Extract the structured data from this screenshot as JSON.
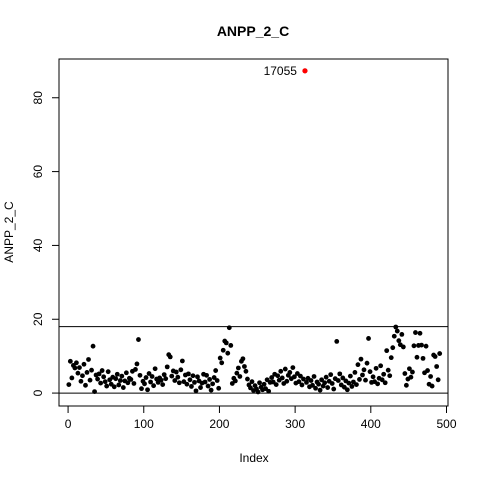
{
  "chart_data": {
    "type": "scatter",
    "title": "ANPP_2_C",
    "xlabel": "Index",
    "ylabel": "ANPP_2_C",
    "xlim": [
      -12,
      502
    ],
    "ylim": [
      -3.5,
      90.5
    ],
    "x_ticks": [
      0,
      100,
      200,
      300,
      400,
      500
    ],
    "y_ticks": [
      0,
      20,
      40,
      60,
      80
    ],
    "hlines": [
      0,
      18
    ],
    "grid": false,
    "legend": "none",
    "point_color": "#000000",
    "highlight_color": "#ff0000",
    "points": [
      [
        1,
        2.3
      ],
      [
        3,
        8.6
      ],
      [
        5,
        4.1
      ],
      [
        7,
        7.5
      ],
      [
        9,
        6.8
      ],
      [
        11,
        8.2
      ],
      [
        13,
        5.4
      ],
      [
        15,
        6.9
      ],
      [
        17,
        3.2
      ],
      [
        19,
        4.7
      ],
      [
        21,
        7.8
      ],
      [
        23,
        2.1
      ],
      [
        25,
        5.6
      ],
      [
        27,
        9.1
      ],
      [
        29,
        3.5
      ],
      [
        31,
        6.2
      ],
      [
        33,
        12.7
      ],
      [
        35,
        0.4
      ],
      [
        37,
        4.9
      ],
      [
        39,
        3.8
      ],
      [
        41,
        5.2
      ],
      [
        43,
        2.7
      ],
      [
        45,
        6.1
      ],
      [
        47,
        4.4
      ],
      [
        49,
        3.1
      ],
      [
        51,
        1.9
      ],
      [
        53,
        5.8
      ],
      [
        55,
        3.6
      ],
      [
        57,
        2.4
      ],
      [
        59,
        4.3
      ],
      [
        61,
        1.7
      ],
      [
        63,
        3.9
      ],
      [
        65,
        5.1
      ],
      [
        67,
        2.2
      ],
      [
        69,
        3.4
      ],
      [
        71,
        4.6
      ],
      [
        73,
        1.5
      ],
      [
        75,
        3.3
      ],
      [
        77,
        5.5
      ],
      [
        79,
        2.8
      ],
      [
        81,
        4.0
      ],
      [
        83,
        3.7
      ],
      [
        85,
        5.9
      ],
      [
        87,
        2.6
      ],
      [
        89,
        6.4
      ],
      [
        91,
        7.9
      ],
      [
        93,
        14.5
      ],
      [
        95,
        4.8
      ],
      [
        97,
        1.2
      ],
      [
        99,
        3.2
      ],
      [
        101,
        2.5
      ],
      [
        103,
        4.2
      ],
      [
        105,
        0.9
      ],
      [
        107,
        5.3
      ],
      [
        109,
        3.0
      ],
      [
        111,
        4.5
      ],
      [
        113,
        2.0
      ],
      [
        115,
        6.6
      ],
      [
        117,
        3.8
      ],
      [
        119,
        2.9
      ],
      [
        121,
        4.1
      ],
      [
        123,
        3.5
      ],
      [
        125,
        2.3
      ],
      [
        127,
        5.0
      ],
      [
        129,
        3.9
      ],
      [
        131,
        7.1
      ],
      [
        133,
        10.4
      ],
      [
        135,
        9.8
      ],
      [
        137,
        4.6
      ],
      [
        139,
        6.0
      ],
      [
        141,
        3.4
      ],
      [
        143,
        5.7
      ],
      [
        145,
        4.3
      ],
      [
        147,
        2.8
      ],
      [
        149,
        6.3
      ],
      [
        151,
        8.7
      ],
      [
        153,
        3.1
      ],
      [
        155,
        4.9
      ],
      [
        157,
        2.4
      ],
      [
        159,
        5.2
      ],
      [
        161,
        3.6
      ],
      [
        163,
        1.8
      ],
      [
        165,
        4.7
      ],
      [
        167,
        2.9
      ],
      [
        169,
        0.6
      ],
      [
        171,
        4.4
      ],
      [
        173,
        3.3
      ],
      [
        175,
        1.5
      ],
      [
        177,
        2.7
      ],
      [
        179,
        5.1
      ],
      [
        181,
        3.0
      ],
      [
        183,
        4.8
      ],
      [
        185,
        1.9
      ],
      [
        187,
        3.7
      ],
      [
        189,
        0.8
      ],
      [
        191,
        2.5
      ],
      [
        193,
        4.2
      ],
      [
        195,
        6.1
      ],
      [
        197,
        3.4
      ],
      [
        199,
        1.3
      ],
      [
        201,
        9.5
      ],
      [
        203,
        8.2
      ],
      [
        205,
        11.6
      ],
      [
        207,
        14.1
      ],
      [
        209,
        13.6
      ],
      [
        211,
        10.8
      ],
      [
        213,
        17.7
      ],
      [
        215,
        12.9
      ],
      [
        217,
        2.6
      ],
      [
        219,
        4.0
      ],
      [
        221,
        3.3
      ],
      [
        223,
        5.4
      ],
      [
        225,
        6.8
      ],
      [
        227,
        4.5
      ],
      [
        229,
        8.6
      ],
      [
        231,
        9.3
      ],
      [
        233,
        7.2
      ],
      [
        235,
        5.9
      ],
      [
        237,
        3.8
      ],
      [
        239,
        2.2
      ],
      [
        241,
        1.4
      ],
      [
        243,
        3.1
      ],
      [
        245,
        0.7
      ],
      [
        247,
        2.0
      ],
      [
        249,
        1.1
      ],
      [
        251,
        0.3
      ],
      [
        253,
        2.8
      ],
      [
        255,
        1.6
      ],
      [
        257,
        0.9
      ],
      [
        259,
        2.4
      ],
      [
        261,
        1.2
      ],
      [
        263,
        3.6
      ],
      [
        265,
        0.5
      ],
      [
        267,
        2.9
      ],
      [
        269,
        4.2
      ],
      [
        271,
        3.0
      ],
      [
        273,
        5.1
      ],
      [
        275,
        2.3
      ],
      [
        277,
        4.7
      ],
      [
        279,
        3.5
      ],
      [
        281,
        5.9
      ],
      [
        283,
        4.1
      ],
      [
        285,
        2.6
      ],
      [
        287,
        6.5
      ],
      [
        289,
        3.2
      ],
      [
        291,
        4.8
      ],
      [
        293,
        5.6
      ],
      [
        295,
        3.9
      ],
      [
        297,
        6.9
      ],
      [
        299,
        4.4
      ],
      [
        301,
        2.7
      ],
      [
        303,
        5.3
      ],
      [
        305,
        3.1
      ],
      [
        307,
        4.6
      ],
      [
        309,
        2.2
      ],
      [
        311,
        3.8
      ],
      [
        313,
        87.3
      ],
      [
        315,
        2.9
      ],
      [
        317,
        4.0
      ],
      [
        319,
        1.7
      ],
      [
        321,
        3.4
      ],
      [
        323,
        2.1
      ],
      [
        325,
        4.5
      ],
      [
        327,
        1.3
      ],
      [
        329,
        3.0
      ],
      [
        331,
        2.4
      ],
      [
        333,
        0.8
      ],
      [
        335,
        3.6
      ],
      [
        337,
        1.9
      ],
      [
        339,
        2.8
      ],
      [
        341,
        4.3
      ],
      [
        343,
        1.5
      ],
      [
        345,
        3.2
      ],
      [
        347,
        5.0
      ],
      [
        349,
        2.6
      ],
      [
        351,
        1.1
      ],
      [
        353,
        3.9
      ],
      [
        355,
        14.0
      ],
      [
        357,
        3.4
      ],
      [
        359,
        5.2
      ],
      [
        361,
        2.2
      ],
      [
        363,
        4.1
      ],
      [
        365,
        1.6
      ],
      [
        367,
        3.3
      ],
      [
        369,
        0.9
      ],
      [
        371,
        2.7
      ],
      [
        373,
        4.6
      ],
      [
        375,
        1.8
      ],
      [
        377,
        3.0
      ],
      [
        379,
        5.6
      ],
      [
        381,
        2.3
      ],
      [
        383,
        7.7
      ],
      [
        385,
        3.7
      ],
      [
        387,
        9.2
      ],
      [
        389,
        4.9
      ],
      [
        391,
        6.3
      ],
      [
        393,
        3.5
      ],
      [
        395,
        8.1
      ],
      [
        397,
        14.8
      ],
      [
        399,
        5.8
      ],
      [
        401,
        2.9
      ],
      [
        403,
        4.4
      ],
      [
        405,
        3.1
      ],
      [
        407,
        6.7
      ],
      [
        409,
        2.5
      ],
      [
        411,
        4.0
      ],
      [
        413,
        7.4
      ],
      [
        415,
        3.6
      ],
      [
        417,
        5.1
      ],
      [
        419,
        2.8
      ],
      [
        421,
        11.5
      ],
      [
        423,
        6.2
      ],
      [
        425,
        4.7
      ],
      [
        427,
        9.6
      ],
      [
        429,
        12.3
      ],
      [
        431,
        15.4
      ],
      [
        433,
        17.9
      ],
      [
        435,
        16.8
      ],
      [
        437,
        14.2
      ],
      [
        439,
        13.1
      ],
      [
        441,
        15.9
      ],
      [
        443,
        12.5
      ],
      [
        445,
        5.3
      ],
      [
        447,
        2.1
      ],
      [
        449,
        3.8
      ],
      [
        451,
        6.6
      ],
      [
        453,
        4.3
      ],
      [
        455,
        5.7
      ],
      [
        457,
        12.8
      ],
      [
        459,
        16.4
      ],
      [
        461,
        9.7
      ],
      [
        463,
        12.9
      ],
      [
        465,
        16.2
      ],
      [
        467,
        13.0
      ],
      [
        469,
        9.4
      ],
      [
        471,
        5.5
      ],
      [
        473,
        12.7
      ],
      [
        475,
        6.1
      ],
      [
        477,
        2.4
      ],
      [
        479,
        4.5
      ],
      [
        481,
        1.9
      ],
      [
        483,
        10.3
      ],
      [
        485,
        9.9
      ],
      [
        487,
        7.2
      ],
      [
        489,
        3.6
      ],
      [
        491,
        10.7
      ]
    ],
    "highlight": {
      "x": 313,
      "y": 87.3,
      "label": "17055"
    }
  }
}
